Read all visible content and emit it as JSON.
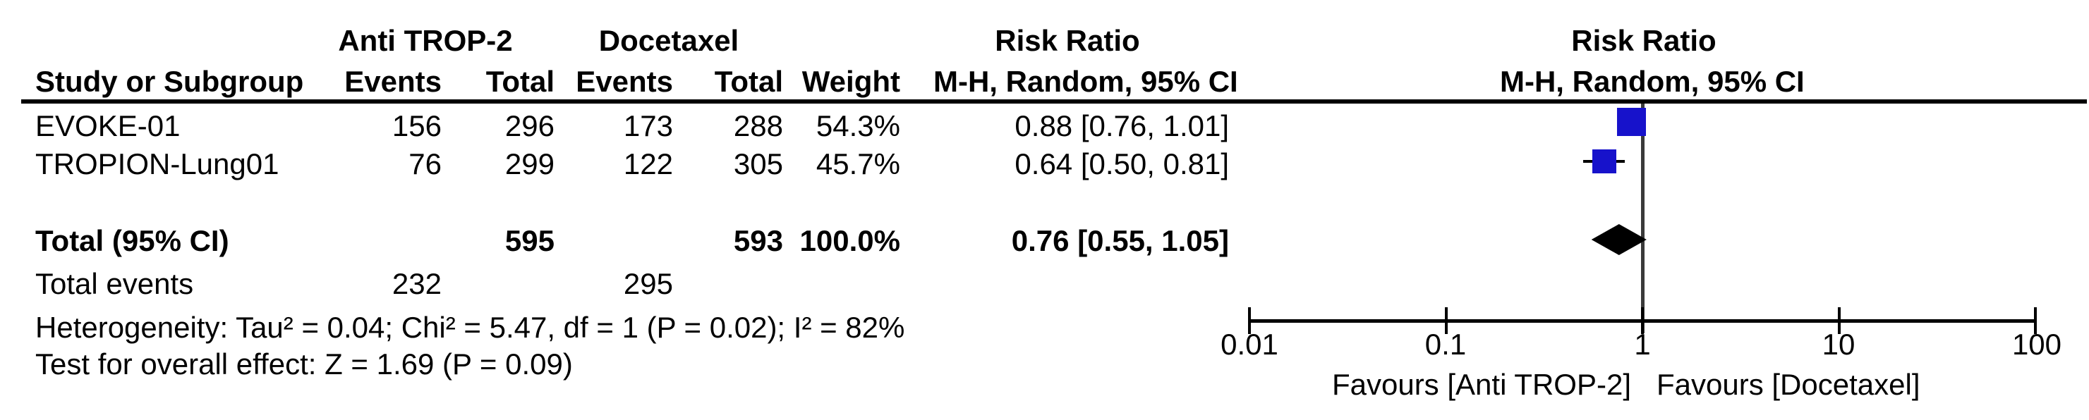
{
  "table": {
    "header_row1": {
      "anti_label": "Anti TROP-2",
      "doc_label": "Docetaxel",
      "risk_ratio_left": "Risk Ratio",
      "risk_ratio_right": "Risk Ratio"
    },
    "header_row2": {
      "study": "Study or Subgroup",
      "events1": "Events",
      "total1": "Total",
      "events2": "Events",
      "total2": "Total",
      "weight": "Weight",
      "mh_left": "M-H, Random, 95% CI",
      "mh_right": "M-H, Random, 95% CI"
    },
    "rows": [
      {
        "study": "EVOKE-01",
        "events1": "156",
        "total1": "296",
        "events2": "173",
        "total2": "288",
        "weight": "54.3%",
        "ci": "0.88 [0.76, 1.01]"
      },
      {
        "study": "TROPION-Lung01",
        "events1": "76",
        "total1": "299",
        "events2": "122",
        "total2": "305",
        "weight": "45.7%",
        "ci": "0.64 [0.50, 0.81]"
      }
    ],
    "total_row": {
      "label": "Total (95% CI)",
      "total1": "595",
      "total2": "593",
      "weight": "100.0%",
      "ci": "0.76 [0.55, 1.05]"
    },
    "total_events_row": {
      "label": "Total events",
      "events1": "232",
      "events2": "295"
    },
    "heterogeneity": "Heterogeneity: Tau² = 0.04; Chi² = 5.47, df = 1 (P = 0.02); I² = 82%",
    "overall_effect": "Test for overall effect: Z = 1.69 (P = 0.09)"
  },
  "chart_data": {
    "type": "forest",
    "effect_measure": "Risk Ratio",
    "method": "M-H, Random, 95% CI",
    "x_scale": "log10",
    "xlim": [
      0.01,
      100
    ],
    "axis_ticks": [
      0.01,
      0.1,
      1,
      10,
      100
    ],
    "axis_tick_labels": [
      "0.01",
      "0.1",
      "1",
      "10",
      "100"
    ],
    "reference_line": 1,
    "favours_left": "Favours [Anti TROP-2]",
    "favours_right": "Favours [Docetaxel]",
    "studies": [
      {
        "name": "EVOKE-01",
        "rr": 0.88,
        "ci_low": 0.76,
        "ci_high": 1.01,
        "weight_pct": 54.3
      },
      {
        "name": "TROPION-Lung01",
        "rr": 0.64,
        "ci_low": 0.5,
        "ci_high": 0.81,
        "weight_pct": 45.7
      }
    ],
    "total": {
      "rr": 0.76,
      "ci_low": 0.55,
      "ci_high": 1.05,
      "weight_pct": 100.0
    },
    "marker_color": "#1712cb",
    "diamond_color": "#000000",
    "reference_line_color": "#3a3a3a",
    "axis_color": "#000000"
  }
}
